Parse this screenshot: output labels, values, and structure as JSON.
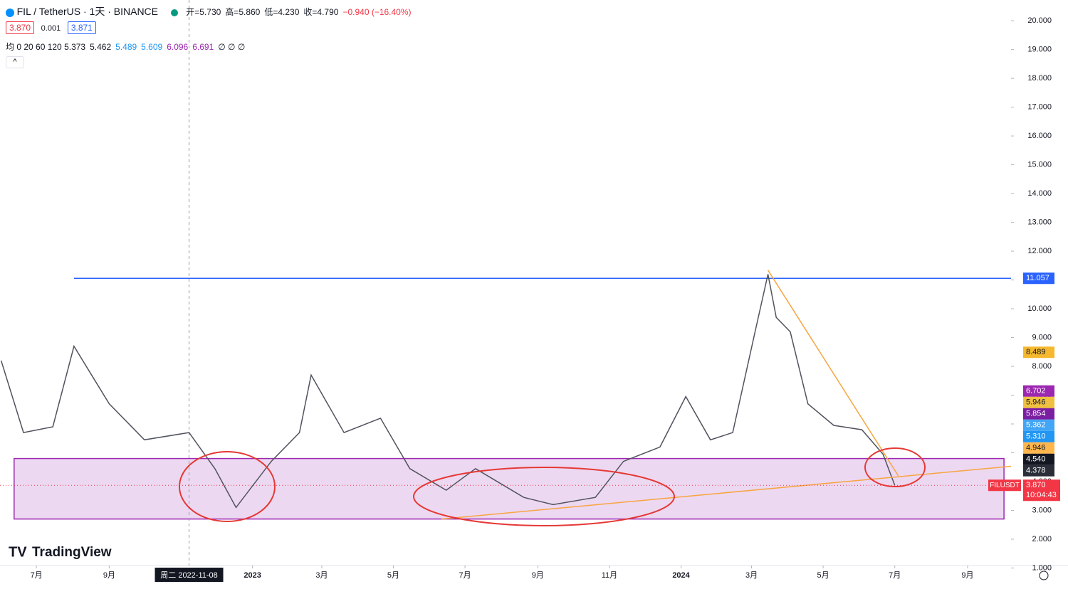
{
  "chart_data": {
    "type": "line",
    "title": "FIL / TetherUS · 1天 · BINANCE",
    "ohlc": [
      "开=5.730",
      "高=5.860",
      "低=4.230",
      "收=4.790",
      "−0.940 (−16.40%)"
    ],
    "quote": [
      "3.870",
      "0.001",
      "3.871"
    ],
    "ma_label": "均 0 20 60 120",
    "ma_values": [
      {
        "text": "5.373",
        "color": "#131722"
      },
      {
        "text": "5.462",
        "color": "#131722"
      },
      {
        "text": "5.489",
        "color": "#2196f3"
      },
      {
        "text": "5.609",
        "color": "#2196f3"
      },
      {
        "text": "6.096",
        "color": "#9c27b0"
      },
      {
        "text": "6.691",
        "color": "#9c27b0"
      },
      {
        "text": "∅ ∅ ∅",
        "color": "#131722"
      }
    ],
    "logo": "TradingView",
    "crosshair": {
      "date": "2022-11-08",
      "label": "周二 2022-11-08"
    },
    "xlim": [
      "2022-05-31",
      "2024-10-08"
    ],
    "ylim": [
      0.27,
      20.72
    ],
    "yticks": [
      {
        "value": 1,
        "label": "1.000"
      },
      {
        "value": 2,
        "label": "2.000"
      },
      {
        "value": 3,
        "label": "3.000"
      },
      {
        "value": 4,
        "label": "4.000"
      },
      {
        "value": 5,
        "label": "5.000"
      },
      {
        "value": 6,
        "label": "6.000"
      },
      {
        "value": 7,
        "label": "7.000"
      },
      {
        "value": 8,
        "label": "8.000"
      },
      {
        "value": 9,
        "label": "9.000"
      },
      {
        "value": 10,
        "label": "10.000"
      },
      {
        "value": 11,
        "label": "11.000"
      },
      {
        "value": 12,
        "label": "12.000"
      },
      {
        "value": 13,
        "label": "13.000"
      },
      {
        "value": 14,
        "label": "14.000"
      },
      {
        "value": 15,
        "label": "15.000"
      },
      {
        "value": 16,
        "label": "16.000"
      },
      {
        "value": 17,
        "label": "17.000"
      },
      {
        "value": 18,
        "label": "18.000"
      },
      {
        "value": 19,
        "label": "19.000"
      },
      {
        "value": 20,
        "label": "20.000"
      }
    ],
    "xticks": [
      {
        "value": "2022-07-01",
        "label": "7月"
      },
      {
        "value": "2022-09-01",
        "label": "9月"
      },
      {
        "value": "2023-01-01",
        "label": "2023"
      },
      {
        "value": "2023-03-01",
        "label": "3月"
      },
      {
        "value": "2023-05-01",
        "label": "5月"
      },
      {
        "value": "2023-07-01",
        "label": "7月"
      },
      {
        "value": "2023-09-01",
        "label": "9月"
      },
      {
        "value": "2023-11-01",
        "label": "11月"
      },
      {
        "value": "2024-01-01",
        "label": "2024"
      },
      {
        "value": "2024-03-01",
        "label": "3月"
      },
      {
        "value": "2024-05-01",
        "label": "5月"
      },
      {
        "value": "2024-07-01",
        "label": "7月"
      },
      {
        "value": "2024-09-01",
        "label": "9月"
      }
    ],
    "series": [
      {
        "color": "#50535e",
        "x": [
          "2022-06-01",
          "2022-06-20",
          "2022-07-15",
          "2022-08-02",
          "2022-08-20",
          "2022-09-01",
          "2022-10-01",
          "2022-11-08",
          "2022-11-30",
          "2022-12-18",
          "2023-01-17",
          "2023-02-10",
          "2023-02-20",
          "2023-03-06",
          "2023-03-20",
          "2023-04-20",
          "2023-05-15",
          "2023-06-15",
          "2023-07-10",
          "2023-08-20",
          "2023-09-14",
          "2023-10-20",
          "2023-11-13",
          "2023-12-14",
          "2024-01-05",
          "2024-01-26",
          "2024-02-14",
          "2024-03-04",
          "2024-03-15",
          "2024-03-22",
          "2024-04-03",
          "2024-04-18",
          "2024-05-10",
          "2024-06-03",
          "2024-06-21",
          "2024-07-01"
        ],
        "values": [
          8.2,
          5.7,
          5.9,
          8.7,
          7.5,
          6.7,
          5.45,
          5.7,
          4.45,
          3.1,
          4.7,
          5.7,
          7.7,
          6.7,
          5.7,
          6.2,
          4.45,
          3.7,
          4.45,
          3.45,
          3.2,
          3.45,
          4.7,
          5.2,
          6.95,
          5.45,
          5.7,
          9.2,
          11.2,
          9.7,
          9.2,
          6.7,
          5.95,
          5.8,
          4.95,
          3.87
        ]
      }
    ],
    "hline": {
      "value": 11.057,
      "start": "2022-08-02",
      "color": "#2962ff"
    },
    "zone": {
      "start": "2022-06-12",
      "end": "2024-10-02",
      "low": 2.7,
      "high": 4.8,
      "color": "#9c27b0"
    },
    "trendlines": [
      {
        "x": [
          "2023-06-11",
          "2024-10-08"
        ],
        "values": [
          2.7,
          4.53
        ],
        "color": "#f7a541"
      },
      {
        "x": [
          "2024-03-15",
          "2024-07-04"
        ],
        "values": [
          11.34,
          4.2
        ],
        "color": "#f7a541"
      }
    ],
    "price_tags": [
      {
        "value": 11.057,
        "label": "11.057",
        "color": "#2962ff"
      },
      {
        "value": 8.489,
        "label": "8.489",
        "color": "#f5b82e"
      },
      {
        "value": 6.702,
        "label": "6.702",
        "color": "#9c27b0"
      },
      {
        "value": 5.946,
        "label": "5.946",
        "color": "#f0c040"
      },
      {
        "value": 5.854,
        "label": "5.854",
        "color": "#7b1fa2"
      },
      {
        "value": 5.362,
        "label": "5.362",
        "color": "#42a5f5"
      },
      {
        "value": 5.31,
        "label": "5.310",
        "color": "#2196f3"
      },
      {
        "value": 4.946,
        "label": "4.946",
        "color": "#ffb74d"
      },
      {
        "value": 4.54,
        "label": "4.540",
        "color": "#131722"
      },
      {
        "value": 4.378,
        "label": "4.378",
        "color": "#2a2e39"
      },
      {
        "value": 3.87,
        "label": "3.870",
        "color": "#f23645",
        "countdown": "10:04:43",
        "symbol": "FILUSDT"
      }
    ]
  }
}
